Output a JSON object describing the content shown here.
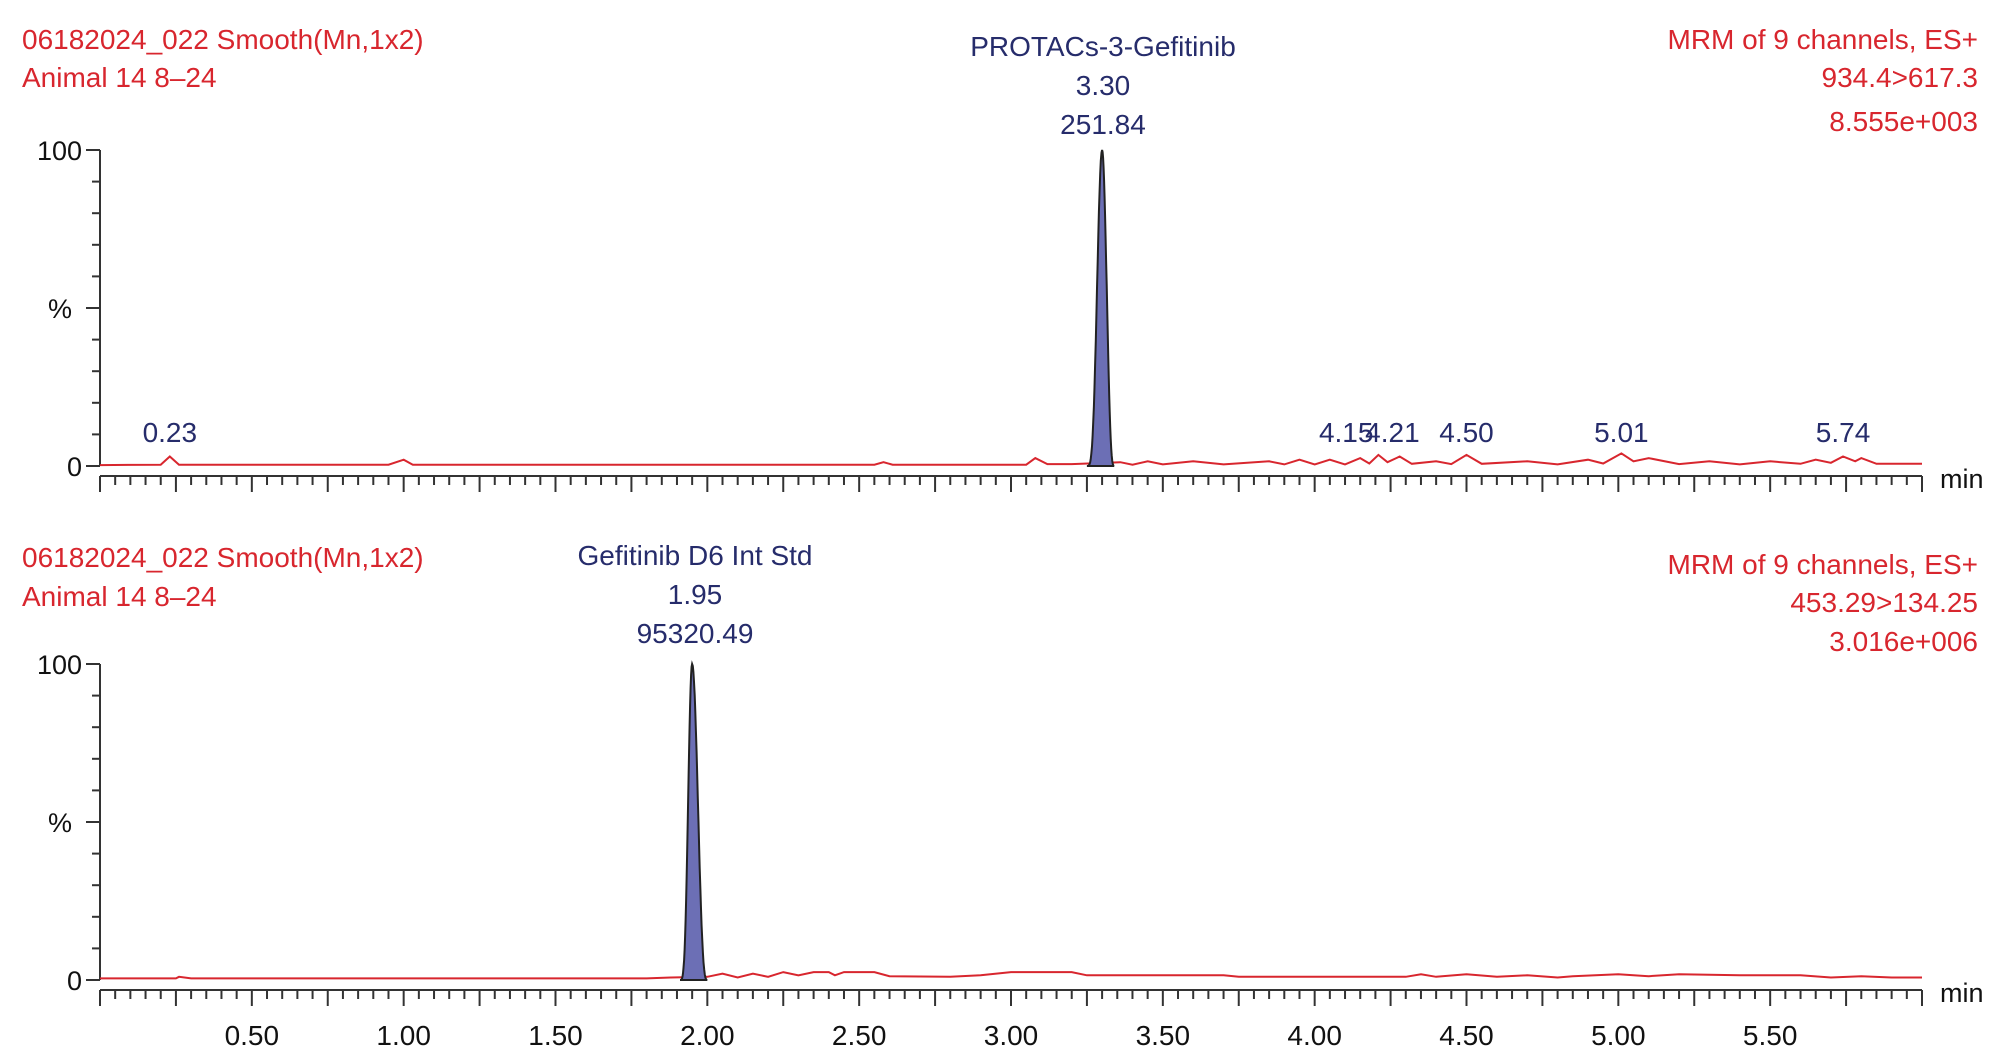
{
  "chart_data": [
    {
      "type": "line",
      "header_left": [
        "06182024_022 Smooth(Mn,1x2)",
        "Animal 14 8–24"
      ],
      "header_right": [
        "MRM of 9 channels, ES+",
        "934.4>617.3",
        "8.555e+003"
      ],
      "peak_label": [
        "PROTACs-3-Gefitinib",
        "3.30",
        "251.84"
      ],
      "ylabel": "%",
      "xlabel": "min",
      "xlim": [
        0,
        6.0
      ],
      "ylim": [
        0,
        100
      ],
      "yticks": [
        "0",
        "100"
      ],
      "xtick_labels": [],
      "main_peak": {
        "rt": 3.3,
        "height": 100,
        "left": 3.25,
        "right": 3.34
      },
      "baseline": [
        [
          0,
          0.3
        ],
        [
          0.2,
          0.4
        ],
        [
          0.23,
          3.0
        ],
        [
          0.26,
          0.4
        ],
        [
          0.95,
          0.4
        ],
        [
          1.0,
          2.0
        ],
        [
          1.03,
          0.4
        ],
        [
          2.55,
          0.4
        ],
        [
          2.58,
          1.2
        ],
        [
          2.61,
          0.4
        ],
        [
          3.05,
          0.4
        ],
        [
          3.08,
          2.5
        ],
        [
          3.12,
          0.6
        ],
        [
          3.2,
          0.6
        ],
        [
          3.36,
          1.2
        ],
        [
          3.4,
          0.4
        ],
        [
          3.45,
          1.5
        ],
        [
          3.5,
          0.5
        ],
        [
          3.6,
          1.5
        ],
        [
          3.7,
          0.5
        ],
        [
          3.85,
          1.5
        ],
        [
          3.9,
          0.5
        ],
        [
          3.95,
          2.0
        ],
        [
          4.0,
          0.5
        ],
        [
          4.05,
          2.0
        ],
        [
          4.1,
          0.5
        ],
        [
          4.15,
          2.5
        ],
        [
          4.18,
          0.8
        ],
        [
          4.21,
          3.5
        ],
        [
          4.24,
          1.2
        ],
        [
          4.28,
          3.0
        ],
        [
          4.32,
          0.7
        ],
        [
          4.4,
          1.5
        ],
        [
          4.45,
          0.6
        ],
        [
          4.5,
          3.5
        ],
        [
          4.55,
          0.7
        ],
        [
          4.7,
          1.5
        ],
        [
          4.8,
          0.5
        ],
        [
          4.9,
          2.0
        ],
        [
          4.95,
          0.8
        ],
        [
          5.01,
          4.0
        ],
        [
          5.05,
          1.5
        ],
        [
          5.1,
          2.5
        ],
        [
          5.2,
          0.6
        ],
        [
          5.3,
          1.5
        ],
        [
          5.4,
          0.5
        ],
        [
          5.5,
          1.5
        ],
        [
          5.6,
          0.7
        ],
        [
          5.65,
          2.0
        ],
        [
          5.7,
          1.0
        ],
        [
          5.74,
          3.0
        ],
        [
          5.78,
          1.5
        ],
        [
          5.8,
          2.5
        ],
        [
          5.85,
          0.7
        ],
        [
          6.0,
          0.7
        ]
      ],
      "minor_peaks": [
        {
          "label": "0.23",
          "x": 0.23
        },
        {
          "label": "4.15",
          "x": 4.15
        },
        {
          "label": "4.21",
          "x": 4.21
        },
        {
          "label": "4.50",
          "x": 4.5
        },
        {
          "label": "5.01",
          "x": 5.01
        },
        {
          "label": "5.74",
          "x": 5.74
        }
      ],
      "colors": {
        "trace": "#d8262e",
        "peak_fill": "#6c6fb5",
        "peak_edge": "#222222",
        "label": "#262c6b",
        "axis": "#333333"
      }
    },
    {
      "type": "line",
      "header_left": [
        "06182024_022 Smooth(Mn,1x2)",
        "Animal 14 8–24"
      ],
      "header_right": [
        "MRM of 9 channels, ES+",
        "453.29>134.25",
        "3.016e+006"
      ],
      "peak_label": [
        "Gefitinib D6 Int Std",
        "1.95",
        "95320.49"
      ],
      "ylabel": "%",
      "xlabel": "min",
      "xlim": [
        0,
        6.0
      ],
      "ylim": [
        0,
        100
      ],
      "yticks": [
        "0",
        "100"
      ],
      "xtick_labels": [
        "0.50",
        "1.00",
        "1.50",
        "2.00",
        "2.50",
        "3.00",
        "3.50",
        "4.00",
        "4.50",
        "5.00",
        "5.50"
      ],
      "main_peak": {
        "rt": 1.95,
        "height": 100,
        "left": 1.91,
        "right": 2.0
      },
      "baseline": [
        [
          0,
          0.5
        ],
        [
          0.25,
          0.5
        ],
        [
          0.26,
          1.0
        ],
        [
          0.3,
          0.5
        ],
        [
          1.8,
          0.5
        ],
        [
          1.88,
          0.8
        ],
        [
          2.0,
          1.0
        ],
        [
          2.05,
          2.0
        ],
        [
          2.1,
          0.8
        ],
        [
          2.15,
          2.0
        ],
        [
          2.2,
          1.0
        ],
        [
          2.25,
          2.5
        ],
        [
          2.3,
          1.5
        ],
        [
          2.35,
          2.5
        ],
        [
          2.4,
          2.5
        ],
        [
          2.42,
          1.5
        ],
        [
          2.45,
          2.5
        ],
        [
          2.55,
          2.5
        ],
        [
          2.6,
          1.2
        ],
        [
          2.8,
          1.0
        ],
        [
          2.9,
          1.5
        ],
        [
          3.0,
          2.5
        ],
        [
          3.2,
          2.5
        ],
        [
          3.25,
          1.5
        ],
        [
          3.7,
          1.5
        ],
        [
          3.75,
          1.0
        ],
        [
          4.3,
          1.0
        ],
        [
          4.35,
          1.8
        ],
        [
          4.4,
          1.0
        ],
        [
          4.5,
          1.8
        ],
        [
          4.6,
          1.0
        ],
        [
          4.7,
          1.5
        ],
        [
          4.8,
          0.8
        ],
        [
          4.85,
          1.2
        ],
        [
          5.0,
          1.8
        ],
        [
          5.1,
          1.2
        ],
        [
          5.2,
          1.8
        ],
        [
          5.4,
          1.5
        ],
        [
          5.6,
          1.5
        ],
        [
          5.7,
          0.8
        ],
        [
          5.8,
          1.2
        ],
        [
          5.9,
          0.8
        ],
        [
          6.0,
          0.8
        ]
      ],
      "minor_peaks": [],
      "colors": {
        "trace": "#d8262e",
        "peak_fill": "#6c6fb5",
        "peak_edge": "#222222",
        "label": "#262c6b",
        "axis": "#333333"
      }
    }
  ]
}
